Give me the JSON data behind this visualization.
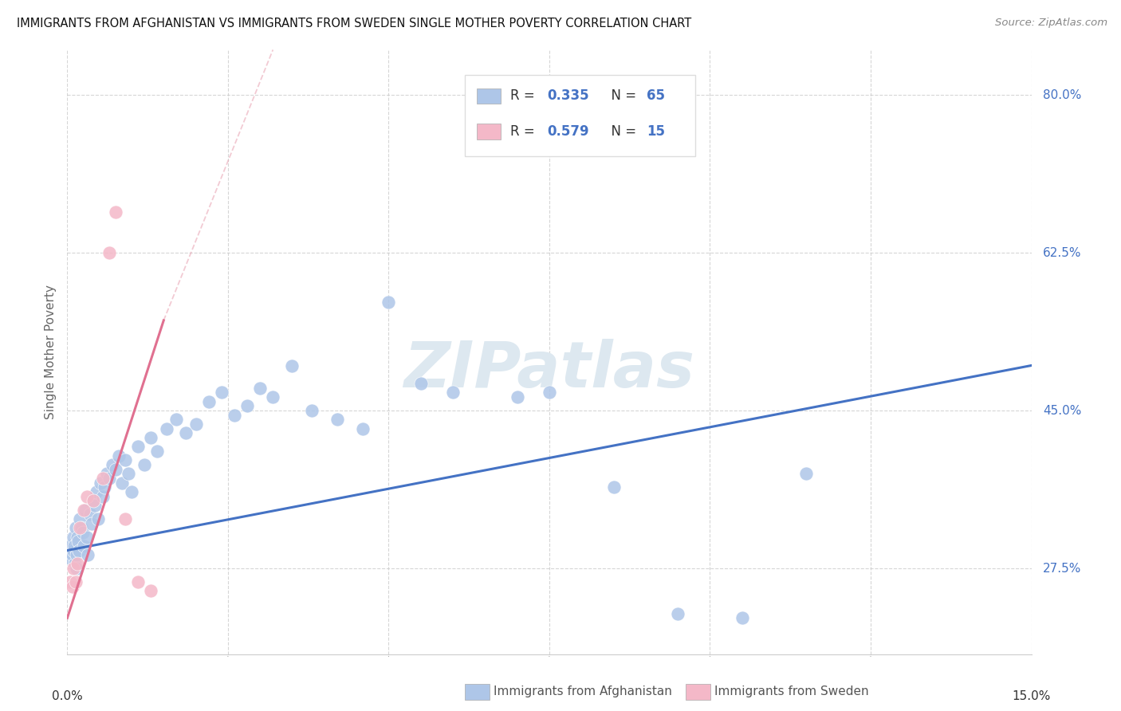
{
  "title": "IMMIGRANTS FROM AFGHANISTAN VS IMMIGRANTS FROM SWEDEN SINGLE MOTHER POVERTY CORRELATION CHART",
  "source": "Source: ZipAtlas.com",
  "ylabel": "Single Mother Poverty",
  "xmin": 0.0,
  "xmax": 15.0,
  "ymin": 18.0,
  "ymax": 85.0,
  "yticks": [
    27.5,
    45.0,
    62.5,
    80.0
  ],
  "ytick_labels": [
    "27.5%",
    "45.0%",
    "62.5%",
    "80.0%"
  ],
  "xtick_positions": [
    0,
    2.5,
    5.0,
    7.5,
    10.0,
    12.5,
    15.0
  ],
  "afghanistan_R": 0.335,
  "afghanistan_N": 65,
  "sweden_R": 0.579,
  "sweden_N": 15,
  "afghanistan_color": "#aec6e8",
  "sweden_color": "#f4b8c8",
  "afghanistan_line_color": "#4472c4",
  "sweden_line_color": "#e07090",
  "sweden_dash_color": "#e8a0b0",
  "watermark_text": "ZIPatlas",
  "watermark_color": "#dde8f0",
  "legend_text_color": "#333333",
  "legend_value_color": "#4472c4",
  "afg_line_x0": 0.0,
  "afg_line_y0": 29.5,
  "afg_line_x1": 15.0,
  "afg_line_y1": 50.0,
  "swe_line_x0": 0.0,
  "swe_line_y0": 22.0,
  "swe_line_x1": 1.5,
  "swe_line_y1": 55.0,
  "swe_dash_x0": 1.5,
  "swe_dash_y0": 55.0,
  "swe_dash_x1": 3.2,
  "swe_dash_y1": 85.0,
  "afg_x": [
    0.05,
    0.07,
    0.08,
    0.09,
    0.1,
    0.11,
    0.12,
    0.13,
    0.14,
    0.15,
    0.16,
    0.17,
    0.18,
    0.2,
    0.22,
    0.24,
    0.26,
    0.28,
    0.3,
    0.32,
    0.35,
    0.38,
    0.4,
    0.43,
    0.45,
    0.48,
    0.52,
    0.55,
    0.58,
    0.62,
    0.65,
    0.7,
    0.75,
    0.8,
    0.85,
    0.9,
    0.95,
    1.0,
    1.1,
    1.2,
    1.3,
    1.4,
    1.55,
    1.7,
    1.85,
    2.0,
    2.2,
    2.4,
    2.6,
    2.8,
    3.0,
    3.2,
    3.5,
    3.8,
    4.2,
    4.6,
    5.0,
    5.5,
    6.0,
    7.0,
    7.5,
    8.5,
    10.5,
    11.5,
    9.5
  ],
  "afg_y": [
    30.0,
    28.5,
    29.0,
    31.0,
    29.5,
    30.0,
    28.0,
    32.0,
    29.0,
    27.5,
    31.0,
    30.5,
    29.5,
    33.0,
    32.0,
    31.5,
    30.0,
    34.0,
    31.0,
    29.0,
    33.5,
    32.5,
    35.0,
    34.5,
    36.0,
    33.0,
    37.0,
    35.5,
    36.5,
    38.0,
    37.5,
    39.0,
    38.5,
    40.0,
    37.0,
    39.5,
    38.0,
    36.0,
    41.0,
    39.0,
    42.0,
    40.5,
    43.0,
    44.0,
    42.5,
    43.5,
    46.0,
    47.0,
    44.5,
    45.5,
    47.5,
    46.5,
    50.0,
    45.0,
    44.0,
    43.0,
    57.0,
    48.0,
    47.0,
    46.5,
    47.0,
    36.5,
    22.0,
    38.0,
    22.5
  ],
  "swe_x": [
    0.05,
    0.08,
    0.1,
    0.13,
    0.16,
    0.2,
    0.25,
    0.3,
    0.4,
    0.55,
    0.65,
    0.75,
    0.9,
    1.1,
    1.3
  ],
  "swe_y": [
    26.0,
    25.5,
    27.5,
    26.0,
    28.0,
    32.0,
    34.0,
    35.5,
    35.0,
    37.5,
    62.5,
    67.0,
    33.0,
    26.0,
    25.0
  ]
}
